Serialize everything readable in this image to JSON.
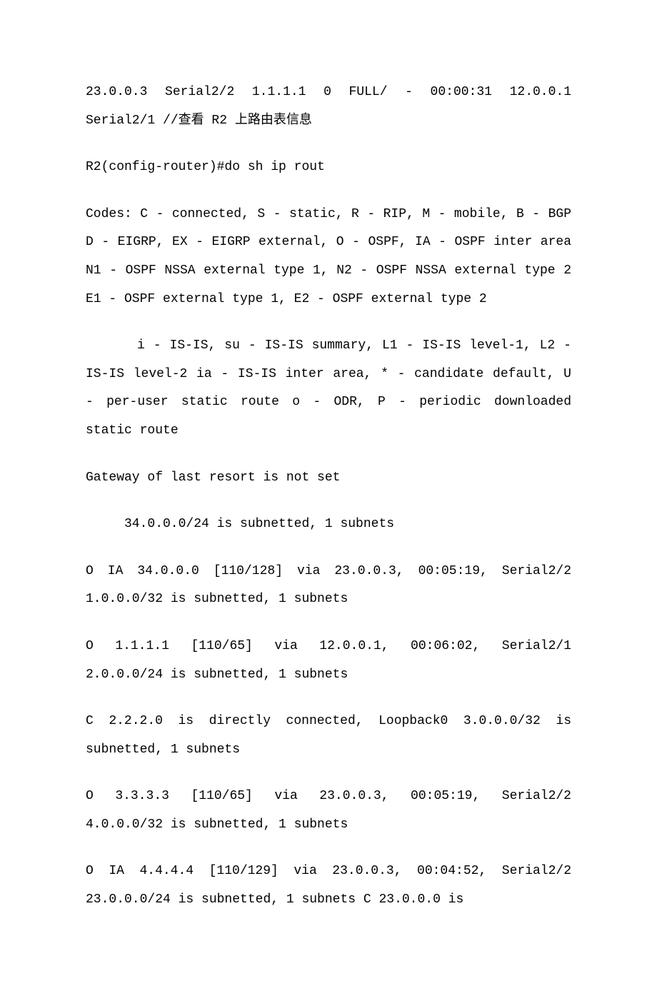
{
  "doc": {
    "p1": "23.0.0.3          Serial2/2 1.1.1.1            0    FULL/  - 00:00:31    12.0.0.1       Serial2/1 //查看 R2 上路由表信息",
    "p2": "R2(config-router)#do sh ip rout",
    "p3": "Codes: C - connected, S - static, R - RIP, M - mobile, B - BGP D - EIGRP, EX - EIGRP external, O - OSPF, IA - OSPF inter area N1 - OSPF NSSA external type 1, N2 - OSPF NSSA external type 2 E1 - OSPF external type 1, E2 - OSPF external type 2",
    "p4": "i - IS-IS, su - IS-IS summary, L1 - IS-IS level-1, L2 - IS-IS level-2        ia - IS-IS inter area, * - candidate default, U - per-user static route       o - ODR, P - periodic downloaded static route",
    "p5": "Gateway of last resort is not set",
    "p6": "34.0.0.0/24 is subnetted, 1 subnets",
    "p7": "O IA    34.0.0.0 [110/128] via 23.0.0.3, 00:05:19, Serial2/2 1.0.0.0/32 is subnetted, 1 subnets",
    "p8": "O        1.1.1.1 [110/65] via 12.0.0.1, 00:06:02, Serial2/1 2.0.0.0/24 is subnetted, 1 subnets",
    "p9": "C            2.2.2.0  is  directly  connected,  Loopback0 3.0.0.0/32 is subnetted, 1 subnets",
    "p10": "O        3.3.3.3 [110/65] via 23.0.0.3, 00:05:19, Serial2/2 4.0.0.0/32 is subnetted, 1 subnets",
    "p11": "O IA    4.4.4.4 [110/129] via 23.0.0.3, 00:04:52, Serial2/2 23.0.0.0/24  is  subnetted,  1  subnets C        23.0.0.0  is"
  }
}
